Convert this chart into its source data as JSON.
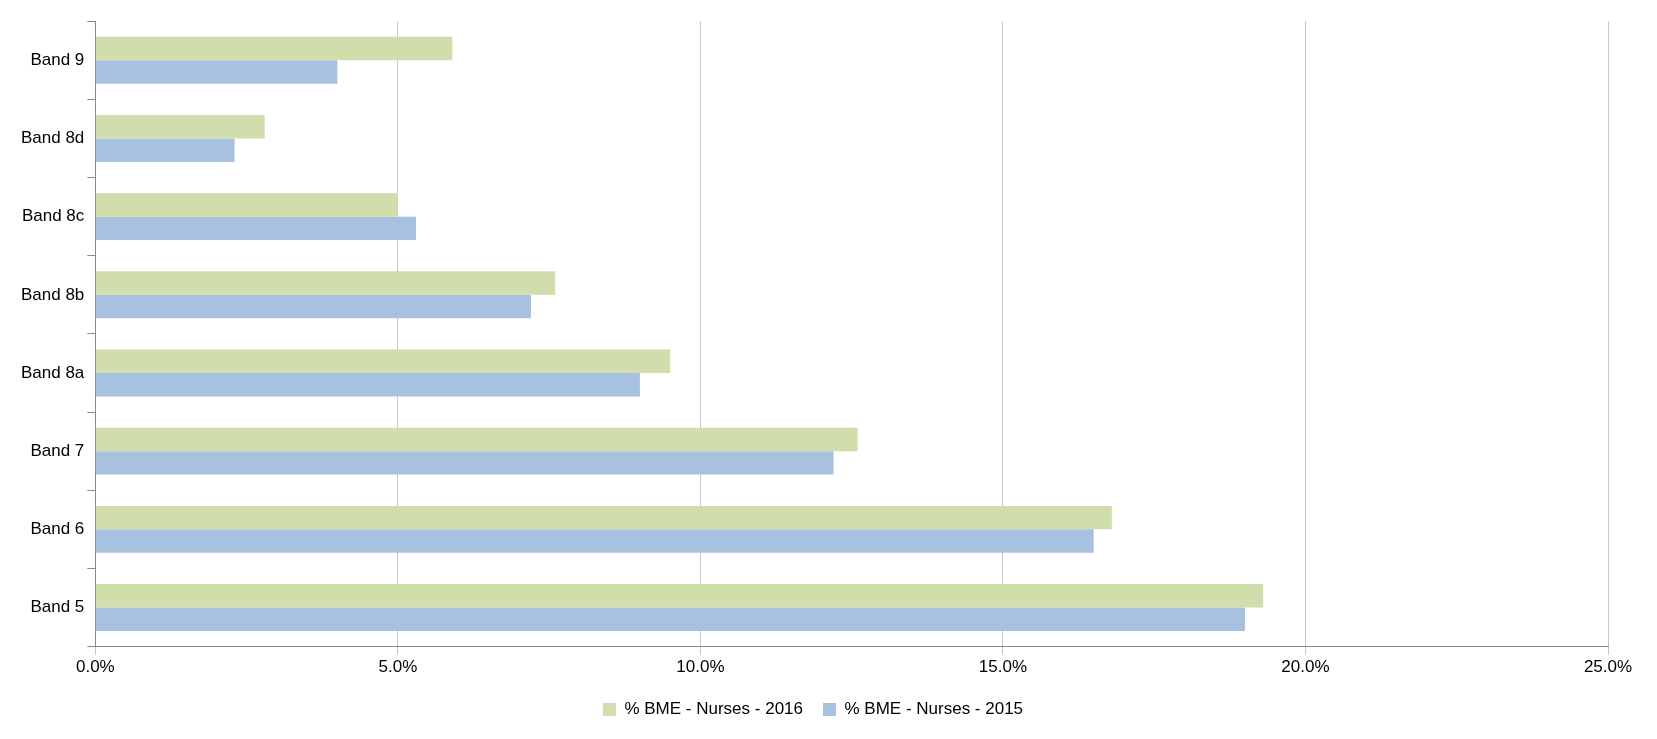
{
  "chart_data": {
    "type": "bar",
    "orientation": "horizontal",
    "categories": [
      "Band 9",
      "Band 8d",
      "Band 8c",
      "Band 8b",
      "Band 8a",
      "Band 7",
      "Band 6",
      "Band 5"
    ],
    "series": [
      {
        "name": "% BME - Nurses - 2016",
        "color": "#d0deab",
        "values": [
          5.9,
          2.8,
          5.0,
          7.6,
          9.5,
          12.6,
          16.8,
          19.3
        ]
      },
      {
        "name": "% BME - Nurses - 2015",
        "color": "#a8c1e0",
        "values": [
          4.0,
          2.3,
          5.3,
          7.2,
          9.0,
          12.2,
          16.5,
          19.0
        ]
      }
    ],
    "xlim": [
      0,
      25
    ],
    "xticks": [
      {
        "value": 0,
        "label": "0.0%"
      },
      {
        "value": 5,
        "label": "5.0%"
      },
      {
        "value": 10,
        "label": "10.0%"
      },
      {
        "value": 15,
        "label": "15.0%"
      },
      {
        "value": 20,
        "label": "20.0%"
      },
      {
        "value": 25,
        "label": "25.0%"
      }
    ],
    "grid": "x",
    "legend": "bottom"
  }
}
